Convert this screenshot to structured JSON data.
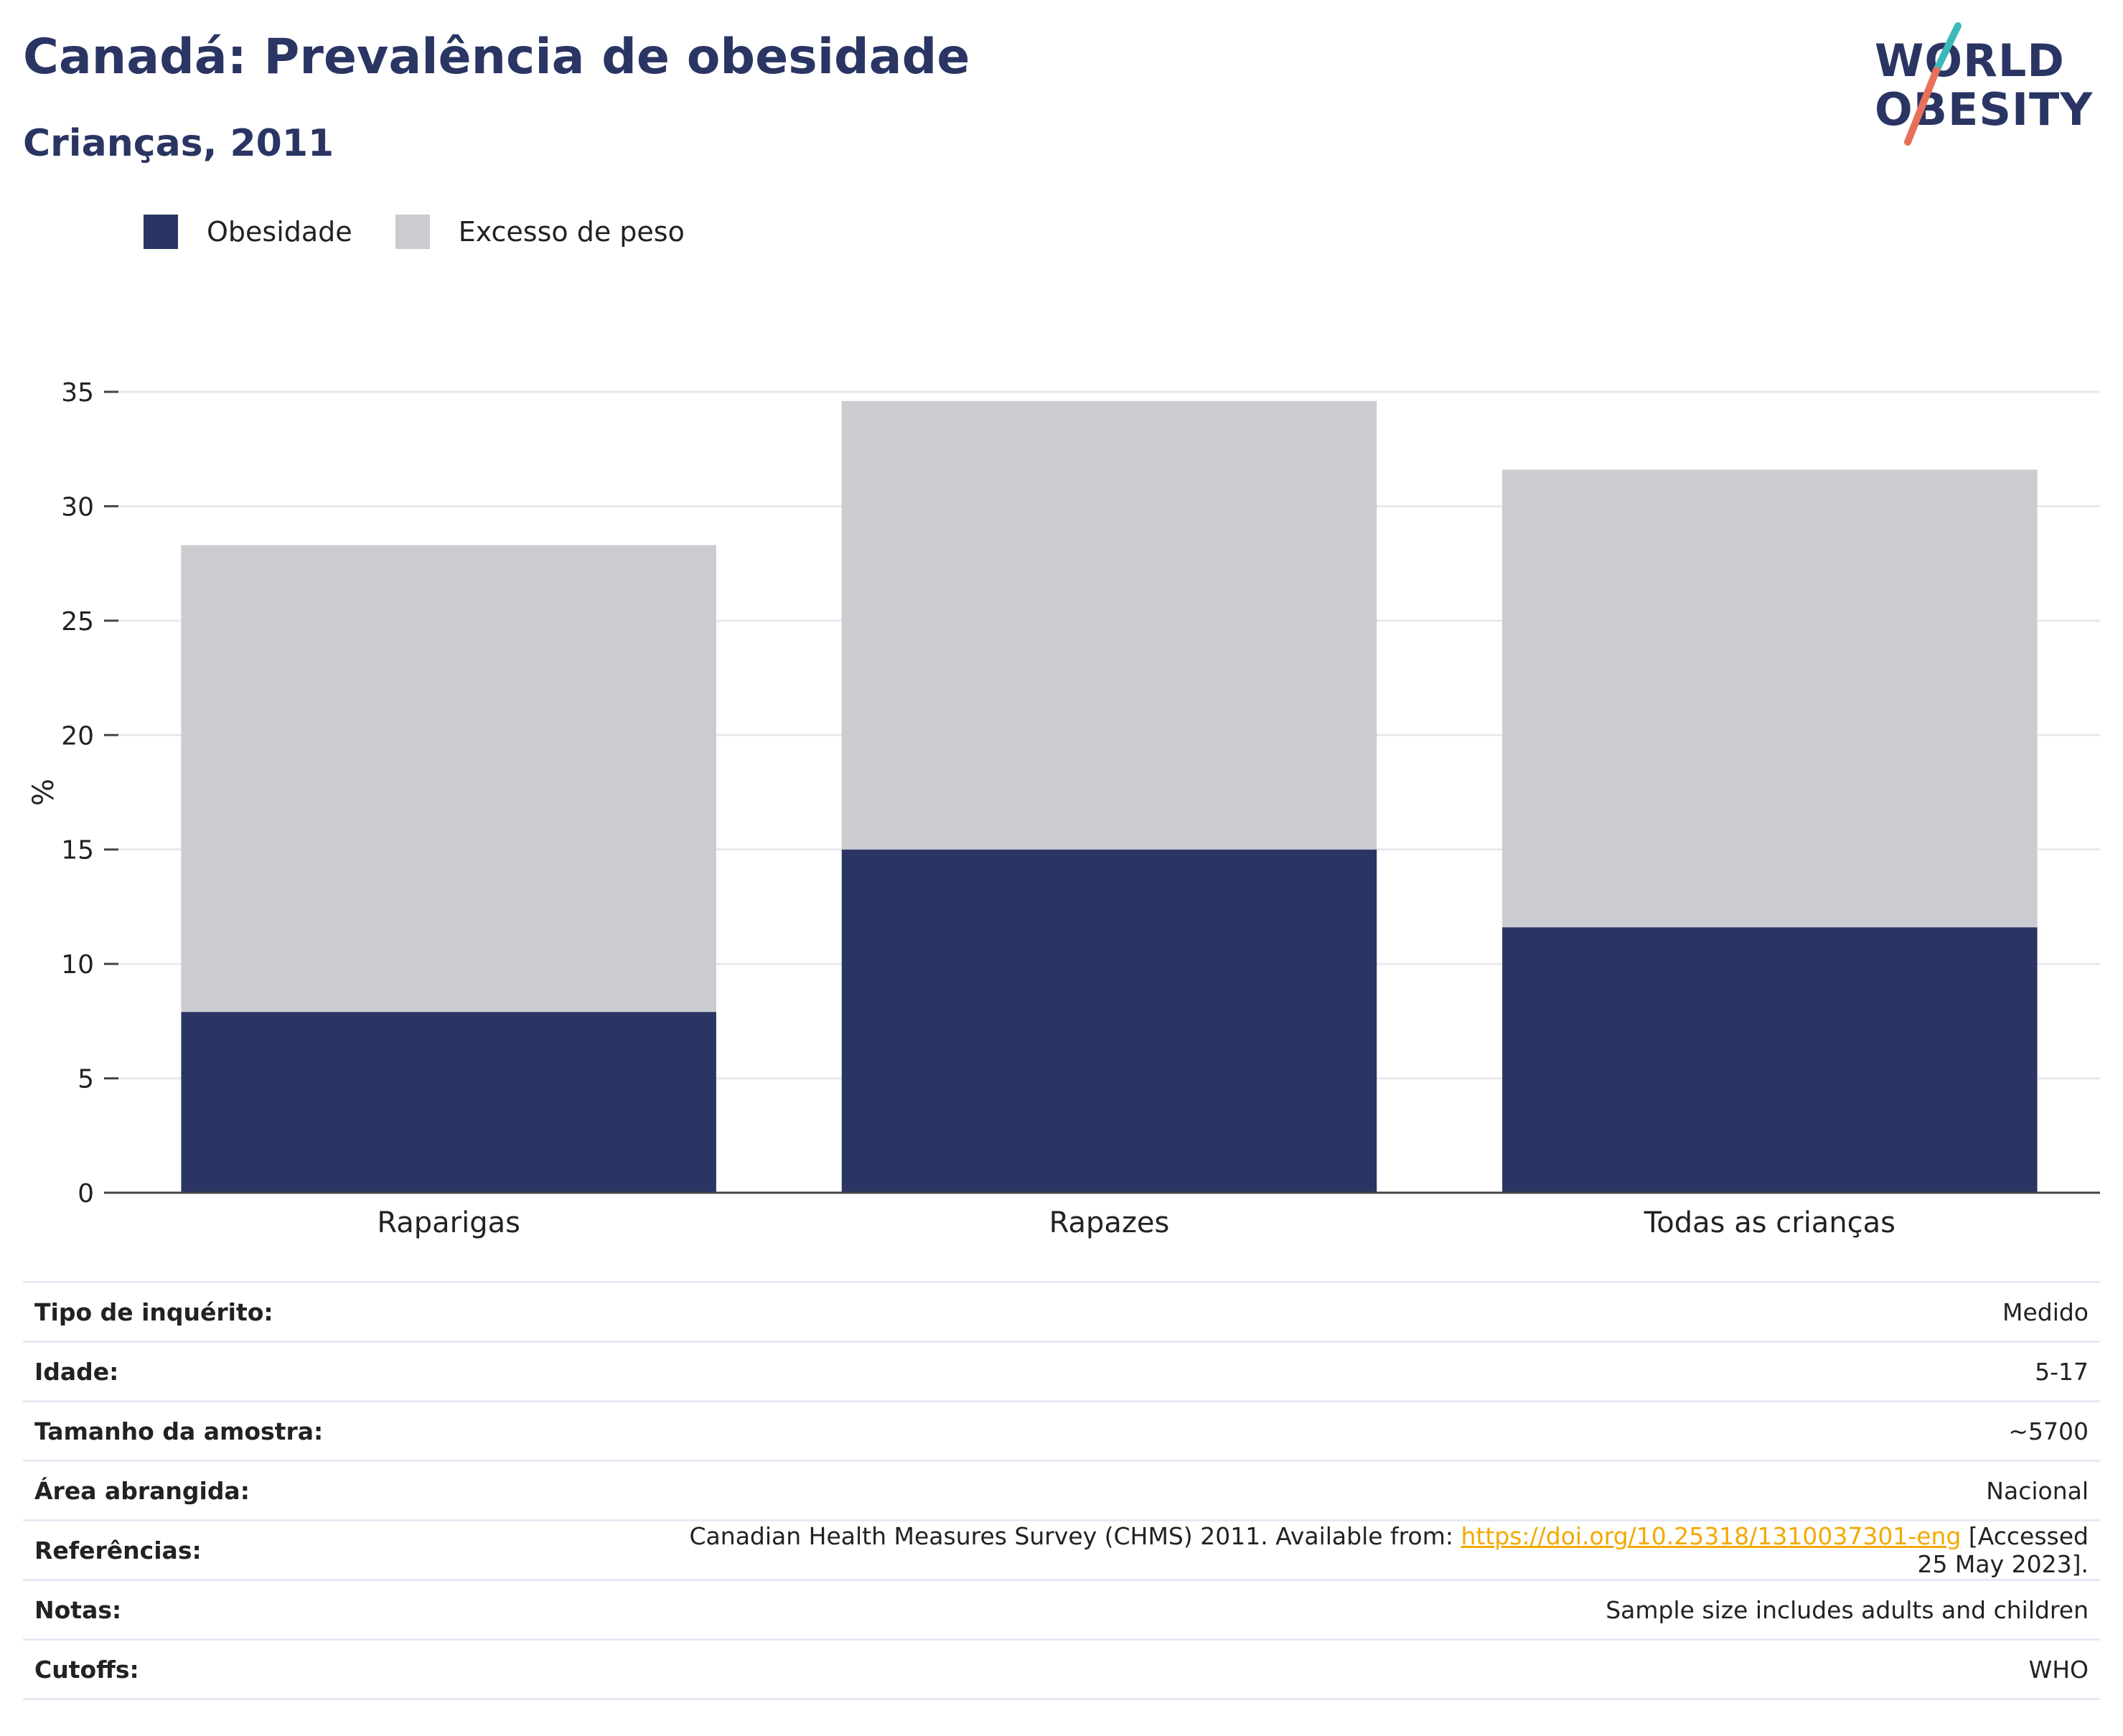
{
  "header": {
    "title": "Canadá: Prevalência de obesidade",
    "subtitle": "Crianças, 2011"
  },
  "logo": {
    "line1": "WORLD",
    "line2": "OBESITY"
  },
  "legend": {
    "items": [
      {
        "label": "Obesidade",
        "color": "#2a3563"
      },
      {
        "label": "Excesso de peso",
        "color": "#cacccf"
      }
    ]
  },
  "chart_data": {
    "type": "bar",
    "stacked": true,
    "categories": [
      "Raparigas",
      "Rapazes",
      "Todas as crianças"
    ],
    "series": [
      {
        "name": "Obesidade",
        "values": [
          7.9,
          15.0,
          11.6
        ],
        "color": "#2a3563"
      },
      {
        "name": "Excesso de peso",
        "values": [
          20.4,
          19.6,
          20.0
        ],
        "color": "#cacccf"
      }
    ],
    "title": "Canadá: Prevalência de obesidade",
    "subtitle": "Crianças, 2011",
    "xlabel": "",
    "ylabel": "%",
    "ylim": [
      0,
      35
    ],
    "yticks": [
      0,
      5,
      10,
      15,
      20,
      25,
      30,
      35
    ],
    "grid": true,
    "legend_position": "top-left"
  },
  "table": {
    "rows": [
      {
        "key": "Tipo de inquérito:",
        "value": "Medido"
      },
      {
        "key": "Idade:",
        "value": "5-17"
      },
      {
        "key": "Tamanho da amostra:",
        "value": "~5700"
      },
      {
        "key": "Área abrangida:",
        "value": "Nacional"
      },
      {
        "key": "Referências:",
        "value_pre": "Canadian Health Measures Survey (CHMS) 2011. Available from: ",
        "link": "https://doi.org/10.25318/1310037301-eng",
        "value_post": " [Accessed 25 May 2023]."
      },
      {
        "key": "Notas:",
        "value": "Sample size includes adults and children"
      },
      {
        "key": "Cutoffs:",
        "value": "WHO"
      }
    ]
  }
}
